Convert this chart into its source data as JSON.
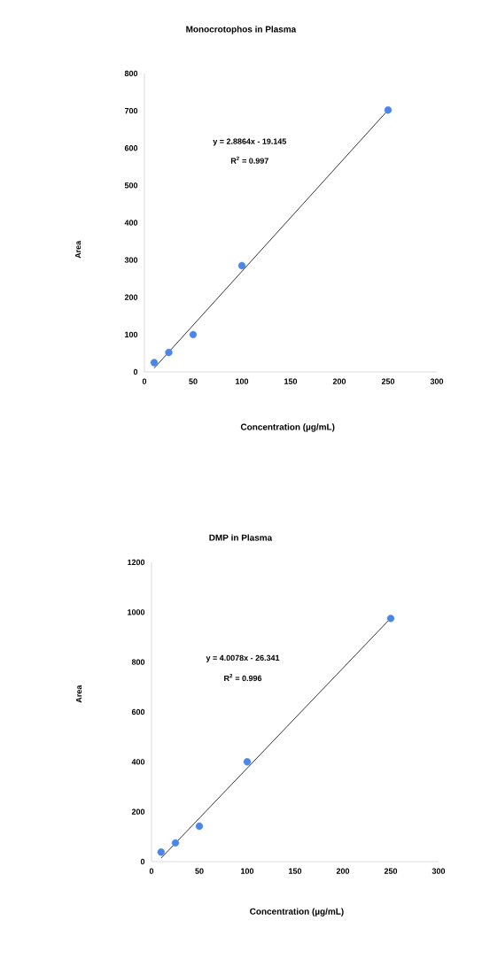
{
  "chart_data": [
    {
      "type": "scatter",
      "title": "Monocrotophos in Plasma",
      "xlabel": "Concentration (µg/mL)",
      "ylabel": "Area",
      "annotations": [
        "y = 2.8864x - 19.145",
        "R$^{2}$ = 0.997"
      ],
      "xlim": [
        0,
        300
      ],
      "ylim": [
        0,
        800
      ],
      "xticks": [
        0,
        50,
        100,
        150,
        200,
        250,
        300
      ],
      "yticks": [
        0,
        100,
        200,
        300,
        400,
        500,
        600,
        700,
        800
      ],
      "series": [
        {
          "color": "#4a86e8",
          "marker": "circle",
          "x": [
            10,
            25,
            50,
            100,
            250
          ],
          "values": [
            25,
            52,
            100,
            285,
            702
          ]
        },
        {
          "type": "line",
          "color": "#333333",
          "x": [
            10,
            250
          ],
          "values": [
            10,
            702
          ]
        }
      ]
    },
    {
      "type": "scatter",
      "title": "DMP in Plasma",
      "xlabel": "Concentration (µg/mL)",
      "ylabel": "Area",
      "annotations": [
        "y = 4.0078x - 26.341",
        "R$^{2}$ = 0.996"
      ],
      "xlim": [
        0,
        300
      ],
      "ylim": [
        0,
        1200
      ],
      "xticks": [
        0,
        50,
        100,
        150,
        200,
        250,
        300
      ],
      "yticks": [
        0,
        200,
        400,
        600,
        800,
        1000,
        1200
      ],
      "series": [
        {
          "color": "#4a86e8",
          "marker": "circle",
          "x": [
            10,
            25,
            50,
            100,
            250
          ],
          "values": [
            38,
            75,
            142,
            400,
            975
          ]
        },
        {
          "type": "line",
          "color": "#333333",
          "x": [
            10,
            250
          ],
          "values": [
            14,
            976
          ]
        }
      ]
    }
  ]
}
